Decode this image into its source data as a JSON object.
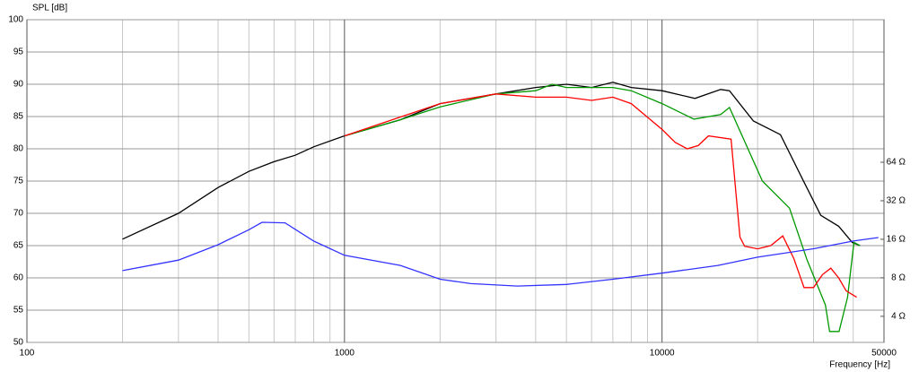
{
  "chart_data": {
    "type": "line",
    "y_label": "SPL [dB]",
    "x_label": "Frequency [Hz]",
    "xscale": "log",
    "y2scale": "log",
    "grid": true,
    "xlim": [
      100,
      50000
    ],
    "ylim": [
      50,
      100
    ],
    "y2lim": [
      2.5,
      832
    ],
    "xticks": [
      100,
      1000,
      10000,
      50000
    ],
    "x_minor_ticks": [
      200,
      300,
      400,
      500,
      600,
      700,
      800,
      900,
      2000,
      3000,
      4000,
      5000,
      6000,
      7000,
      8000,
      9000,
      20000,
      30000,
      40000
    ],
    "yticks": [
      50,
      55,
      60,
      65,
      70,
      75,
      80,
      85,
      90,
      95,
      100
    ],
    "y2ticks": [
      {
        "value": 4,
        "label": "4 Ω"
      },
      {
        "value": 8,
        "label": "8 Ω"
      },
      {
        "value": 16,
        "label": "16 Ω"
      },
      {
        "value": 32,
        "label": "32 Ω"
      },
      {
        "value": 64,
        "label": "64 Ω"
      }
    ],
    "series": [
      {
        "color": "#000000",
        "x": [
          200,
          300,
          400,
          500,
          600,
          700,
          800,
          1000,
          1500,
          2000,
          3000,
          4000,
          5000,
          6000,
          7000,
          8000,
          10000,
          12700,
          15300,
          16300,
          19400,
          23600,
          27700,
          31600,
          36000,
          39700,
          42000
        ],
        "values": [
          66,
          70,
          74,
          76.5,
          78,
          79,
          80.3,
          82,
          84.5,
          87,
          88.5,
          89.5,
          90,
          89.5,
          90.3,
          89.5,
          89,
          87.8,
          89.2,
          89,
          84.3,
          82.2,
          75.3,
          69.7,
          68,
          65.5,
          65
        ]
      },
      {
        "color": "#009900",
        "x": [
          1000,
          1500,
          2000,
          3000,
          4000,
          4500,
          5000,
          7000,
          8000,
          10000,
          12600,
          15300,
          16300,
          20700,
          25200,
          28600,
          32700,
          33700,
          36100,
          38400,
          40200,
          42000
        ],
        "values": [
          82,
          84.5,
          86.5,
          88.5,
          89,
          90,
          89.5,
          89.5,
          89,
          87,
          84.6,
          85.3,
          86.4,
          75,
          70.8,
          62.8,
          55.8,
          51.7,
          51.7,
          57,
          65.5,
          65
        ]
      },
      {
        "color": "#ff0000",
        "x": [
          1000,
          2000,
          3000,
          4000,
          5000,
          6000,
          7000,
          8000,
          10000,
          11000,
          12000,
          13000,
          14000,
          16500,
          17600,
          18200,
          20000,
          22000,
          24000,
          26000,
          28000,
          30000,
          32000,
          34000,
          36000,
          38000,
          41000
        ],
        "values": [
          82,
          87,
          88.5,
          88,
          88,
          87.5,
          88,
          87,
          83,
          81,
          80,
          80.5,
          82,
          81.5,
          66.3,
          64.9,
          64.5,
          65,
          66.5,
          63,
          58.5,
          58.5,
          60.5,
          61.5,
          60,
          58,
          57
        ]
      },
      {
        "color": "#3333ff",
        "axis": "y2",
        "x": [
          200,
          300,
          400,
          500,
          550,
          650,
          800,
          1000,
          1500,
          2000,
          2500,
          3500,
          5000,
          7000,
          10000,
          15000,
          20000,
          30000,
          40000,
          48000
        ],
        "values": [
          9.1,
          11,
          14.5,
          19,
          21.7,
          21.5,
          15.5,
          12,
          10,
          7.8,
          7.2,
          6.9,
          7.1,
          7.8,
          8.7,
          10,
          11.6,
          13.5,
          15.5,
          16.5
        ]
      }
    ]
  }
}
